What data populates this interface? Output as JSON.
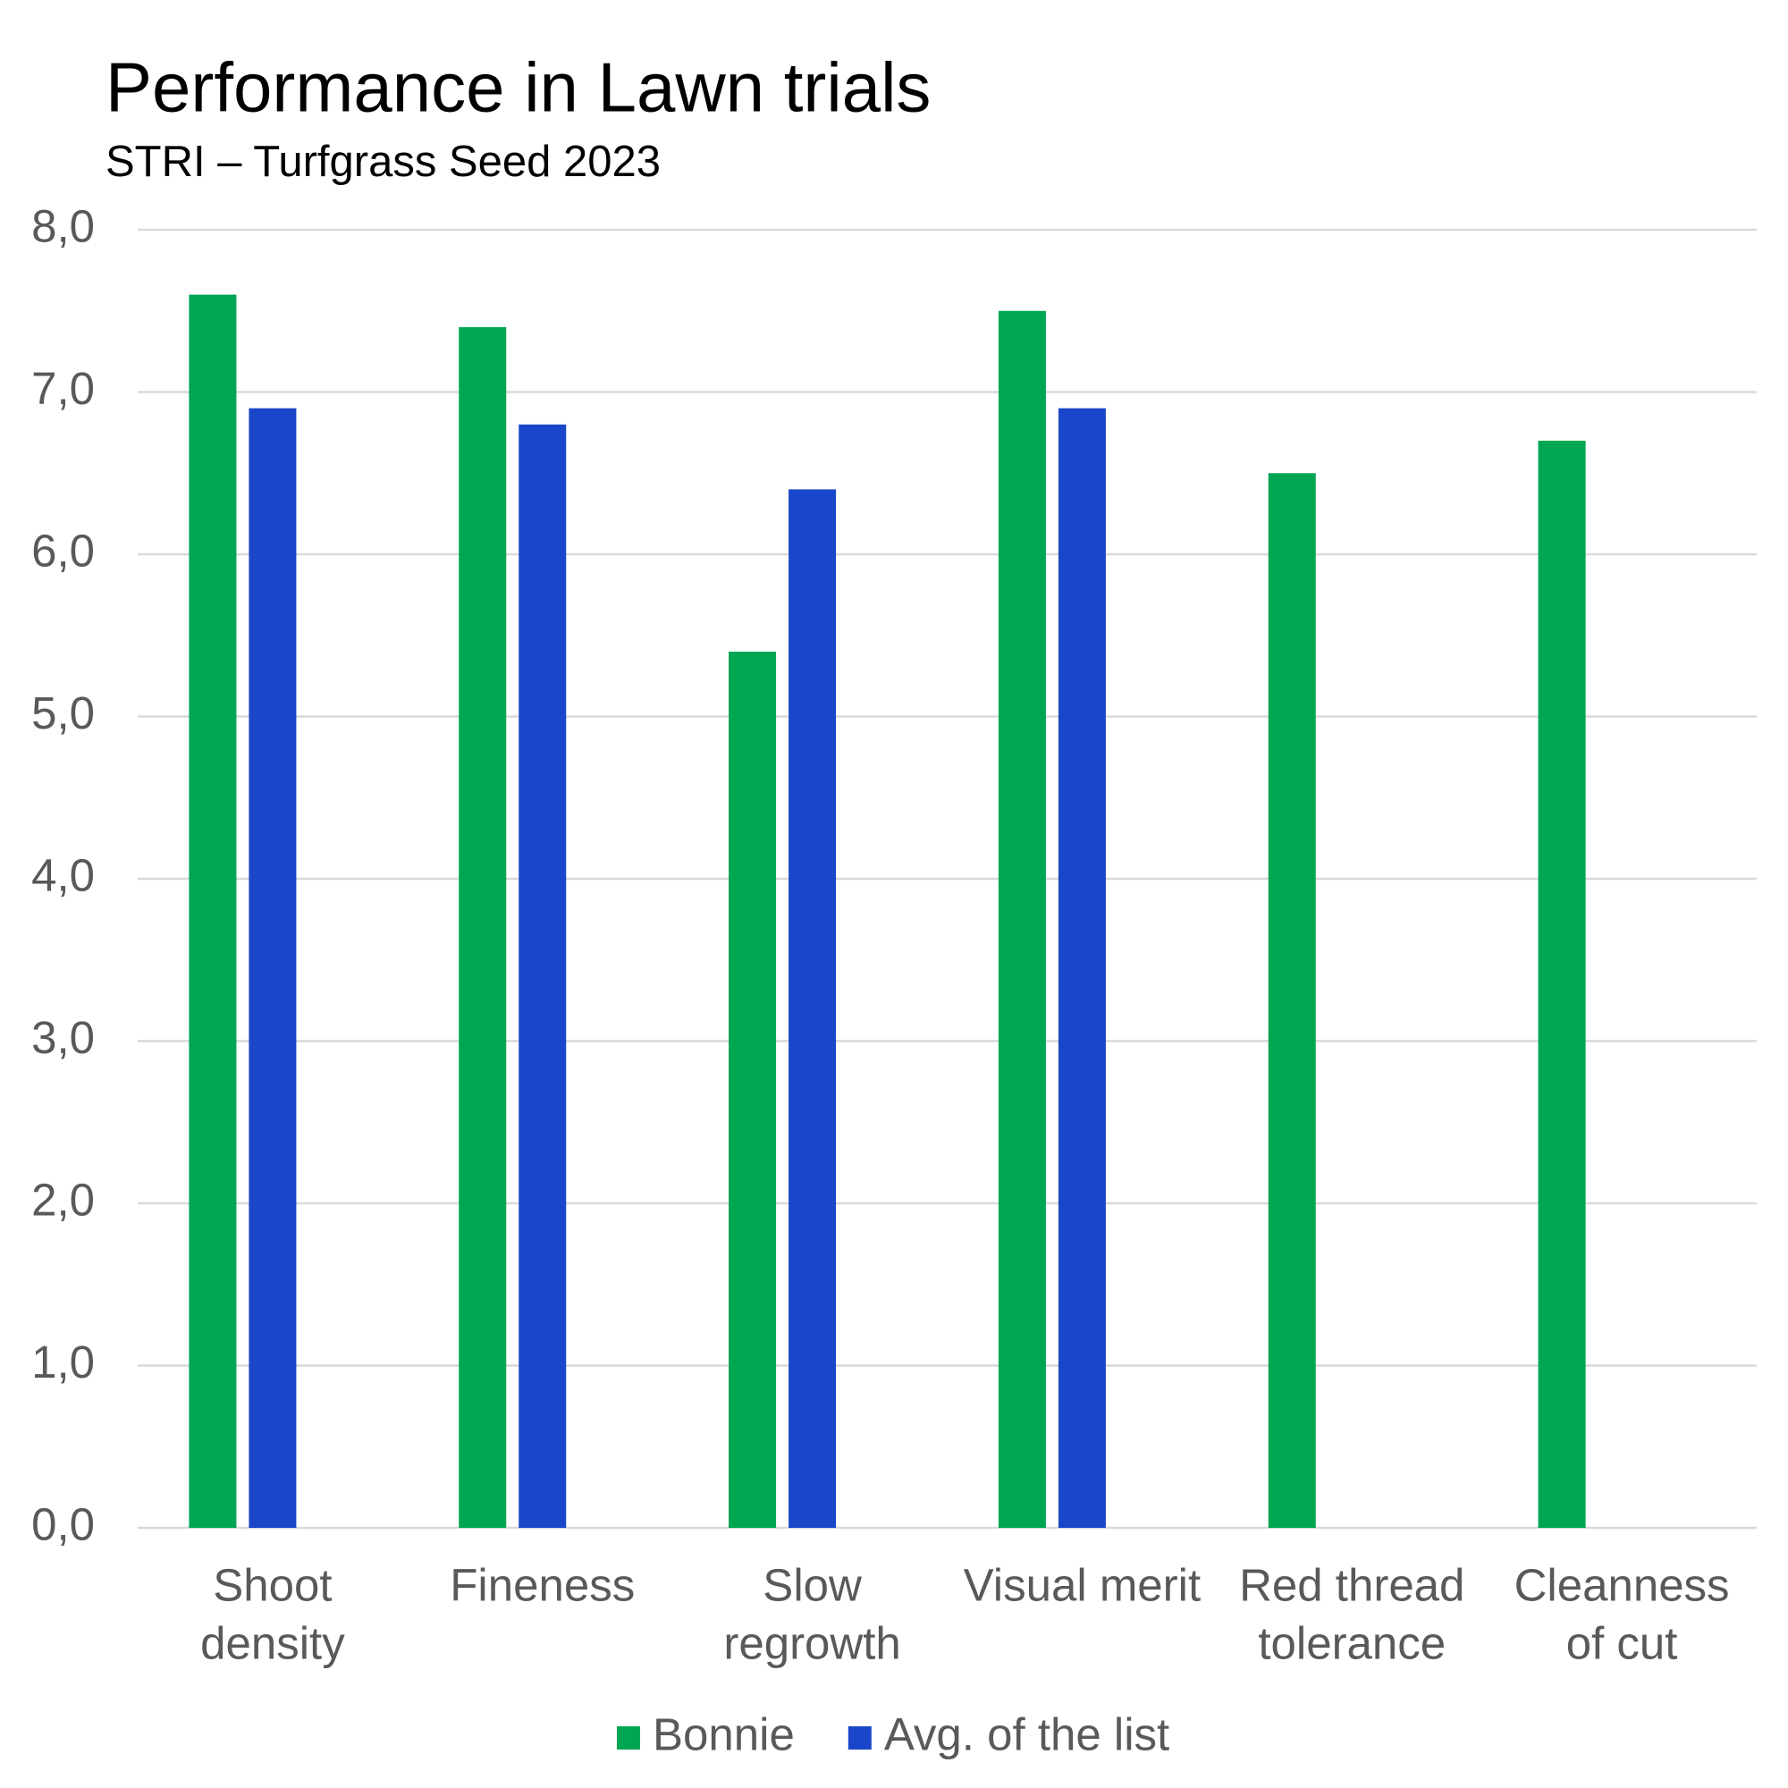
{
  "chart_data": {
    "type": "bar",
    "title": "Performance in Lawn trials",
    "subtitle": "STRI – Turfgrass Seed 2023",
    "categories": [
      [
        "Shoot",
        "density"
      ],
      [
        "Fineness"
      ],
      [
        "Slow",
        "regrowth"
      ],
      [
        "Visual merit"
      ],
      [
        "Red thread",
        "tolerance"
      ],
      [
        "Cleanness",
        "of cut"
      ]
    ],
    "series": [
      {
        "name": "Bonnie",
        "color": "#00a651",
        "values": [
          7.6,
          7.4,
          5.4,
          7.5,
          6.5,
          6.7
        ]
      },
      {
        "name": "Avg. of the list",
        "color": "#1a47c9",
        "values": [
          6.9,
          6.8,
          6.4,
          6.9,
          null,
          null
        ]
      }
    ],
    "ylim": [
      0,
      8
    ],
    "yticks": [
      {
        "value": 0,
        "label": "0,0"
      },
      {
        "value": 1,
        "label": "1,0"
      },
      {
        "value": 2,
        "label": "2,0"
      },
      {
        "value": 3,
        "label": "3,0"
      },
      {
        "value": 4,
        "label": "4,0"
      },
      {
        "value": 5,
        "label": "5,0"
      },
      {
        "value": 6,
        "label": "6,0"
      },
      {
        "value": 7,
        "label": "7,0"
      },
      {
        "value": 8,
        "label": "8,0"
      }
    ],
    "grid": true,
    "legend": "bottom"
  }
}
